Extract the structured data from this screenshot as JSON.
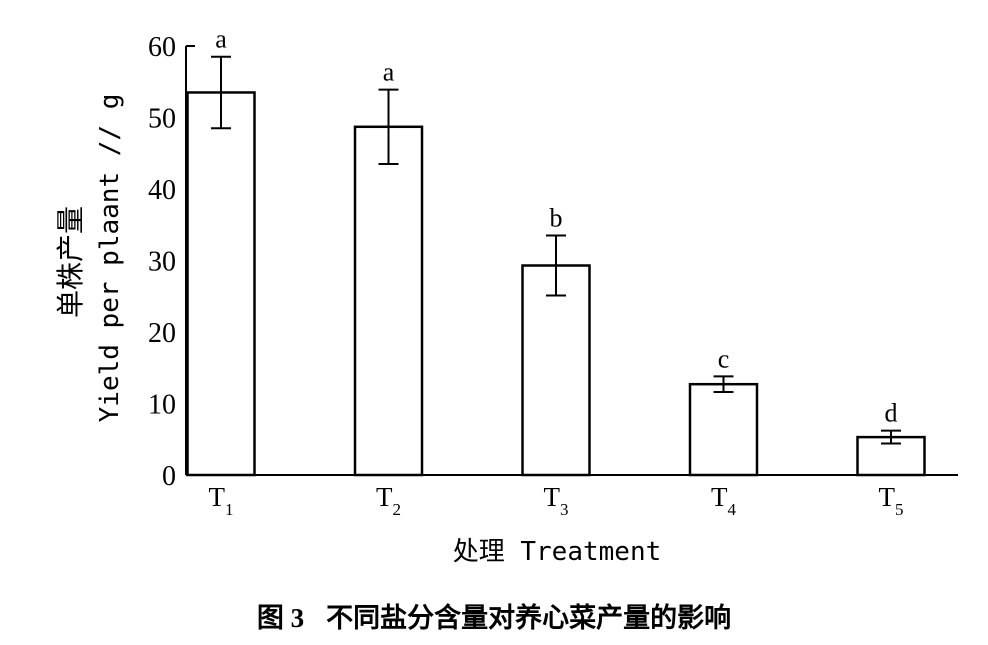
{
  "chart_data": {
    "type": "bar",
    "categories": [
      {
        "base": "T",
        "sub": "1"
      },
      {
        "base": "T",
        "sub": "2"
      },
      {
        "base": "T",
        "sub": "3"
      },
      {
        "base": "T",
        "sub": "4"
      },
      {
        "base": "T",
        "sub": "5"
      }
    ],
    "values": [
      53.5,
      48.7,
      29.3,
      12.7,
      5.3
    ],
    "errors": [
      5.0,
      5.2,
      4.2,
      1.1,
      0.9
    ],
    "significance": [
      "a",
      "a",
      "b",
      "c",
      "d"
    ],
    "ylabel_cn": "单株产量",
    "ylabel_en": "Yield per plaant // g",
    "xlabel": "处理 Treatment",
    "ylim": [
      0,
      60
    ],
    "yticks": [
      0,
      10,
      20,
      30,
      40,
      50,
      60
    ],
    "grid": false,
    "bar_fill": "#ffffff",
    "bar_stroke": "#000000"
  },
  "caption": {
    "figure_number": "图 3",
    "title": "不同盐分含量对养心菜产量的影响"
  }
}
